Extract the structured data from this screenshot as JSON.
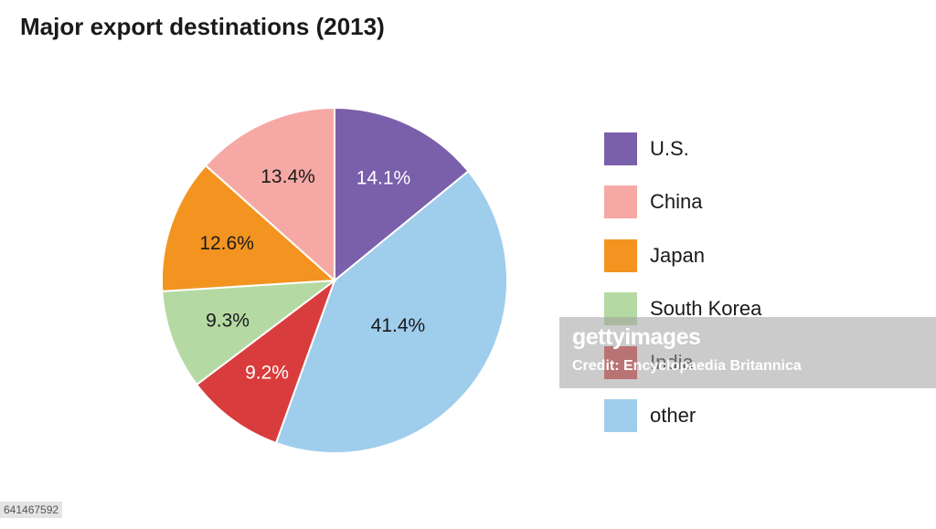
{
  "chart_data": {
    "type": "pie",
    "title": "Major export destinations (2013)",
    "slices": [
      {
        "label": "U.S.",
        "value": 14.1,
        "value_label": "14.1%",
        "color": "#7a5fab",
        "text_color": "#ffffff"
      },
      {
        "label": "other",
        "value": 41.4,
        "value_label": "41.4%",
        "color": "#9fcdec",
        "text_color": "#1a1a1a"
      },
      {
        "label": "India",
        "value": 9.2,
        "value_label": "9.2%",
        "color": "#d93c3c",
        "text_color": "#ffffff"
      },
      {
        "label": "South Korea",
        "value": 9.3,
        "value_label": "9.3%",
        "color": "#b5d9a3",
        "text_color": "#1a1a1a"
      },
      {
        "label": "Japan",
        "value": 12.6,
        "value_label": "12.6%",
        "color": "#f39421",
        "text_color": "#1a1a1a"
      },
      {
        "label": "China",
        "value": 13.4,
        "value_label": "13.4%",
        "color": "#f6a9a4",
        "text_color": "#1a1a1a"
      }
    ],
    "legend_order": [
      "U.S.",
      "China",
      "Japan",
      "South Korea",
      "India",
      "other"
    ],
    "legend_position": "right"
  },
  "watermark": {
    "logo": "gettyimages",
    "credit": "Credit: Encyclopaedia Britannica"
  },
  "image_id": "641467592"
}
